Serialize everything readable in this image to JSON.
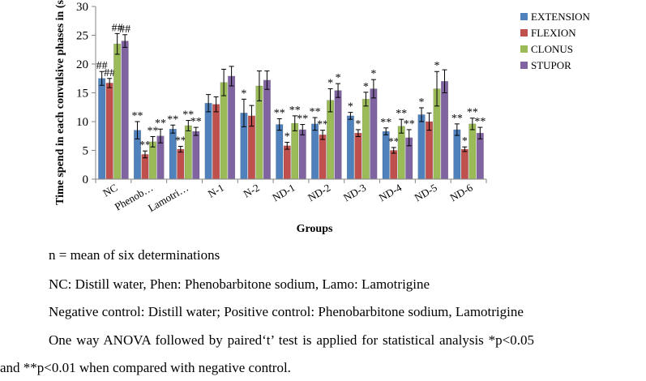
{
  "chart_data": {
    "type": "bar",
    "ylabel": "Time spend in each convulsive phases in (sec)",
    "xlabel": "Groups",
    "ylim": [
      0,
      30
    ],
    "yticks": [
      0,
      5,
      10,
      15,
      20,
      25,
      30
    ],
    "grid": false,
    "legend_position": "right",
    "categories": [
      "NC",
      "Phenob…",
      "Lamotri…",
      "N-1",
      "N-2",
      "ND-1",
      "ND-2",
      "ND-3",
      "ND-4",
      "ND-5",
      "ND-6"
    ],
    "series": [
      {
        "name": "EXTENSION",
        "color": "#4F81BD",
        "values": [
          17.5,
          8.5,
          8.7,
          13.2,
          11.5,
          9.5,
          9.6,
          11.0,
          8.3,
          11.2,
          8.6
        ],
        "errors": [
          1.2,
          1.5,
          0.7,
          1.5,
          2.4,
          1.0,
          1.1,
          0.6,
          0.6,
          1.2,
          1.0
        ],
        "labels": [
          "##",
          "**",
          "**",
          "",
          "*",
          "**",
          "**",
          "*",
          "**",
          "*",
          "**"
        ]
      },
      {
        "name": "FLEXION",
        "color": "#C0504D",
        "values": [
          16.7,
          4.3,
          5.2,
          13.0,
          11.0,
          5.8,
          7.7,
          8.0,
          5.0,
          10.0,
          5.2
        ],
        "errors": [
          0.8,
          0.6,
          0.5,
          1.3,
          1.8,
          0.6,
          0.8,
          0.6,
          0.5,
          1.5,
          0.4
        ],
        "labels": [
          "##",
          "**",
          "**",
          "",
          "",
          "*",
          "**",
          "*",
          "**",
          "",
          "*"
        ]
      },
      {
        "name": "CLONUS",
        "color": "#9BBB59",
        "values": [
          23.5,
          6.5,
          9.3,
          16.8,
          16.2,
          9.7,
          13.7,
          13.9,
          9.2,
          15.7,
          9.6
        ],
        "errors": [
          1.8,
          0.9,
          0.9,
          2.3,
          2.6,
          1.3,
          2.0,
          1.2,
          1.2,
          3.0,
          1.0
        ],
        "labels": [
          "##",
          "**",
          "**",
          "",
          "",
          "**",
          "*",
          "*",
          "**",
          "*",
          "**"
        ]
      },
      {
        "name": "STUPOR",
        "color": "#8064A2",
        "values": [
          24.0,
          7.5,
          8.3,
          17.9,
          17.2,
          8.6,
          15.4,
          15.7,
          7.2,
          17.0,
          8.0
        ],
        "errors": [
          1.1,
          1.2,
          0.7,
          1.7,
          1.6,
          0.9,
          1.2,
          1.6,
          1.4,
          2.0,
          1.0
        ],
        "labels": [
          "##",
          "**",
          "**",
          "",
          "",
          "**",
          "*",
          "*",
          "**",
          "",
          "**"
        ]
      }
    ]
  },
  "notes": {
    "n_def": "n = mean of six determinations",
    "abbrev": "NC: Distill water, Phen: Phenobarbitone sodium, Lamo: Lamotrigine",
    "controls": "Negative control: Distill water; Positive control: Phenobarbitone sodium, Lamotrigine",
    "stats_1": "One way ANOVA followed by paired‘t’ test is applied for statistical analysis *p<0.05",
    "stats_2": "and **p<0.01 when compared with negative control."
  }
}
